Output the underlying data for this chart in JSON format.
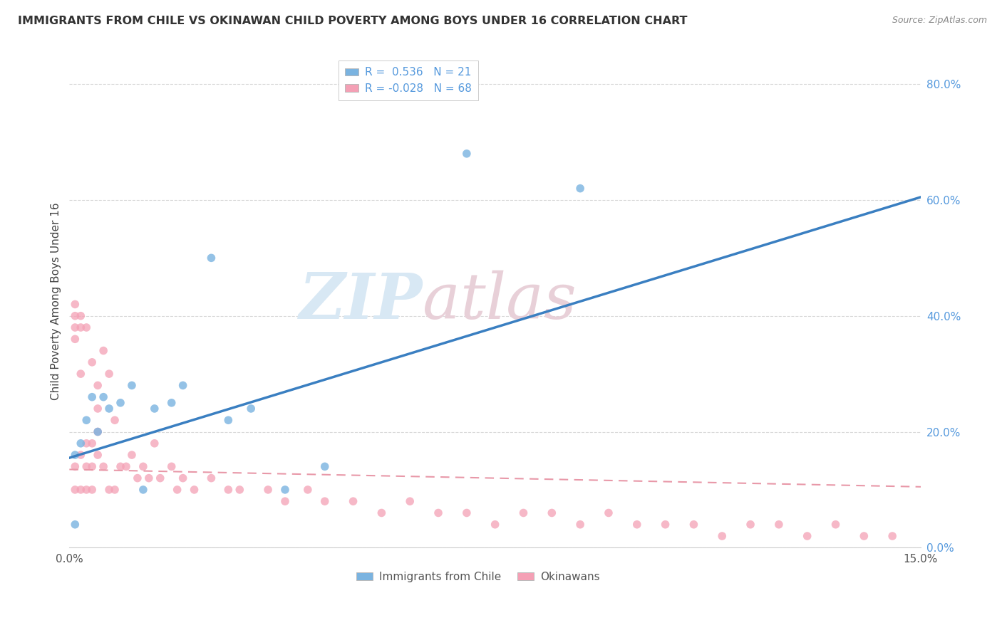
{
  "title": "IMMIGRANTS FROM CHILE VS OKINAWAN CHILD POVERTY AMONG BOYS UNDER 16 CORRELATION CHART",
  "source": "Source: ZipAtlas.com",
  "ylabel": "Child Poverty Among Boys Under 16",
  "xlim": [
    0.0,
    0.15
  ],
  "ylim": [
    0.0,
    0.85
  ],
  "xtick_positions": [
    0.0,
    0.03,
    0.06,
    0.09,
    0.12,
    0.15
  ],
  "xtick_labels": [
    "0.0%",
    "",
    "",
    "",
    "",
    "15.0%"
  ],
  "ytick_vals": [
    0.0,
    0.2,
    0.4,
    0.6,
    0.8
  ],
  "ytick_labels": [
    "0.0%",
    "20.0%",
    "40.0%",
    "60.0%",
    "80.0%"
  ],
  "r_chile": 0.536,
  "n_chile": 21,
  "r_okinawan": -0.028,
  "n_okinawan": 68,
  "color_chile": "#7ab3e0",
  "color_okinawan": "#f4a0b5",
  "color_chile_line": "#3a7fc1",
  "color_okinawan_line": "#e898a8",
  "watermark_zip": "ZIP",
  "watermark_atlas": "atlas",
  "chile_line_x0": 0.0,
  "chile_line_y0": 0.155,
  "chile_line_x1": 0.15,
  "chile_line_y1": 0.605,
  "okin_line_x0": 0.0,
  "okin_line_y0": 0.135,
  "okin_line_x1": 0.15,
  "okin_line_y1": 0.105,
  "chile_scatter_x": [
    0.001,
    0.001,
    0.002,
    0.003,
    0.004,
    0.005,
    0.006,
    0.007,
    0.009,
    0.011,
    0.013,
    0.015,
    0.018,
    0.02,
    0.025,
    0.028,
    0.032,
    0.038,
    0.045,
    0.07,
    0.09
  ],
  "chile_scatter_y": [
    0.04,
    0.16,
    0.18,
    0.22,
    0.26,
    0.2,
    0.26,
    0.24,
    0.25,
    0.28,
    0.1,
    0.24,
    0.25,
    0.28,
    0.5,
    0.22,
    0.24,
    0.1,
    0.14,
    0.68,
    0.62
  ],
  "okinawan_scatter_x": [
    0.001,
    0.001,
    0.001,
    0.001,
    0.001,
    0.001,
    0.002,
    0.002,
    0.002,
    0.002,
    0.002,
    0.003,
    0.003,
    0.003,
    0.003,
    0.004,
    0.004,
    0.004,
    0.004,
    0.005,
    0.005,
    0.005,
    0.005,
    0.006,
    0.006,
    0.007,
    0.007,
    0.008,
    0.008,
    0.009,
    0.01,
    0.011,
    0.012,
    0.013,
    0.014,
    0.015,
    0.016,
    0.018,
    0.019,
    0.02,
    0.022,
    0.025,
    0.028,
    0.03,
    0.035,
    0.038,
    0.042,
    0.045,
    0.05,
    0.055,
    0.06,
    0.065,
    0.07,
    0.075,
    0.08,
    0.085,
    0.09,
    0.095,
    0.1,
    0.105,
    0.11,
    0.115,
    0.12,
    0.125,
    0.13,
    0.135,
    0.14,
    0.145
  ],
  "okinawan_scatter_y": [
    0.42,
    0.4,
    0.38,
    0.36,
    0.14,
    0.1,
    0.4,
    0.38,
    0.3,
    0.16,
    0.1,
    0.38,
    0.18,
    0.14,
    0.1,
    0.32,
    0.18,
    0.14,
    0.1,
    0.28,
    0.24,
    0.2,
    0.16,
    0.34,
    0.14,
    0.3,
    0.1,
    0.22,
    0.1,
    0.14,
    0.14,
    0.16,
    0.12,
    0.14,
    0.12,
    0.18,
    0.12,
    0.14,
    0.1,
    0.12,
    0.1,
    0.12,
    0.1,
    0.1,
    0.1,
    0.08,
    0.1,
    0.08,
    0.08,
    0.06,
    0.08,
    0.06,
    0.06,
    0.04,
    0.06,
    0.06,
    0.04,
    0.06,
    0.04,
    0.04,
    0.04,
    0.02,
    0.04,
    0.04,
    0.02,
    0.04,
    0.02,
    0.02
  ]
}
